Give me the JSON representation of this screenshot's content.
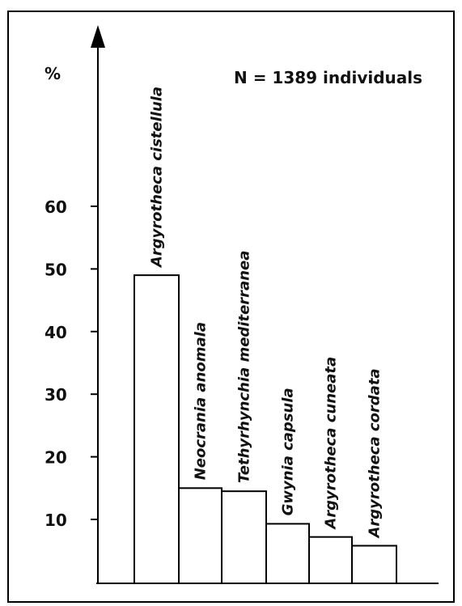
{
  "chart_data": {
    "type": "bar",
    "categories": [
      "Argyrotheca cistellula",
      "Neocrania anomala",
      "Tethyrhynchia mediterranea",
      "Gwynia capsula",
      "Argyrotheca cuneata",
      "Argyrotheca cordata"
    ],
    "values": [
      49,
      15,
      14.5,
      9.3,
      7.2,
      5.8
    ],
    "ylabel": "%",
    "ylim": [
      0,
      60
    ],
    "yticks": [
      10,
      20,
      30,
      40,
      50,
      60
    ],
    "annotation": "N = 1389 individuals",
    "grid": false
  }
}
